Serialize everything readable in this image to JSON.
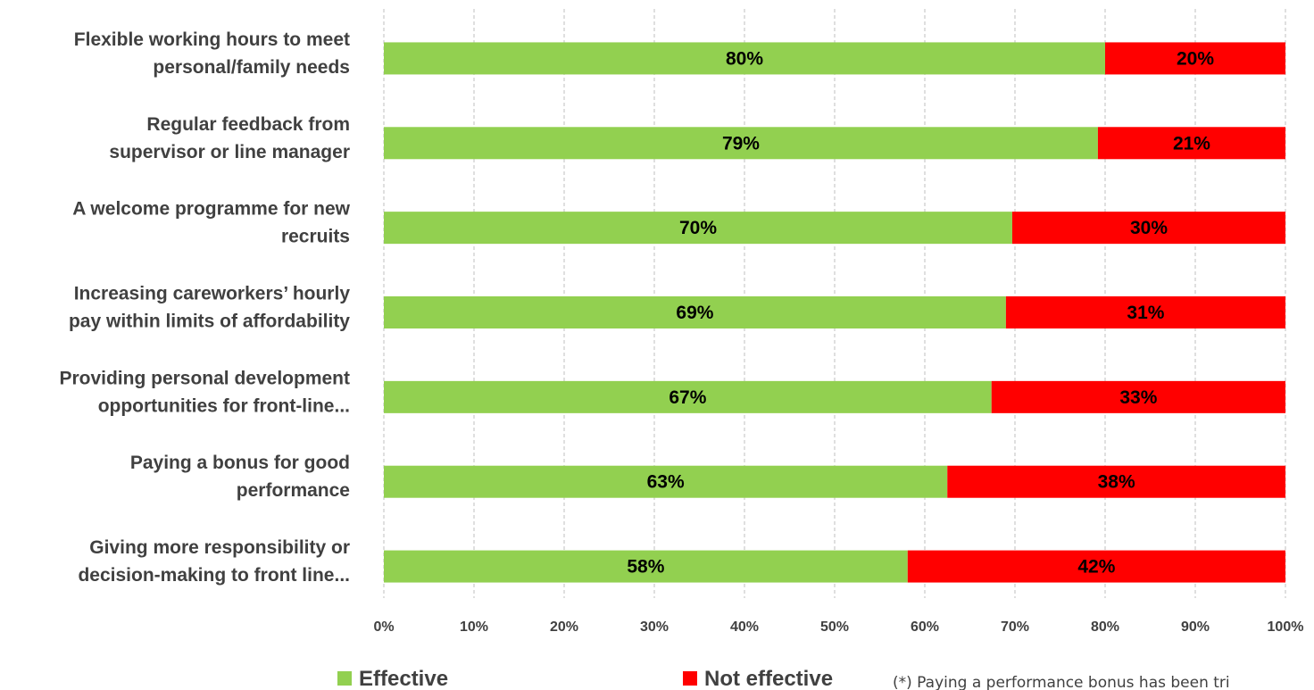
{
  "chart_data": {
    "type": "bar",
    "orientation": "horizontal",
    "stacked": true,
    "categories": [
      [
        "Flexible working hours to meet",
        "personal/family needs"
      ],
      [
        "Regular feedback from",
        "supervisor or line manager"
      ],
      [
        "A welcome programme for new",
        "recruits"
      ],
      [
        "Increasing careworkers’ hourly",
        "pay within limits of affordability"
      ],
      [
        "Providing personal development",
        "opportunities for front-line..."
      ],
      [
        "Paying a bonus for good",
        "performance"
      ],
      [
        "Giving more responsibility or",
        "decision-making to front line..."
      ]
    ],
    "series": [
      {
        "name": "Effective",
        "color": "#92d050",
        "values": [
          80,
          79.2,
          69.7,
          69,
          67.4,
          62.5,
          58.1
        ],
        "labels": [
          "80%",
          "79%",
          "70%",
          "69%",
          "67%",
          "63%",
          "58%"
        ],
        "label_color": "#000000"
      },
      {
        "name": "Not effective",
        "color": "#ff0000",
        "values": [
          20,
          20.8,
          30.3,
          31,
          32.6,
          37.5,
          41.9
        ],
        "labels": [
          "20%",
          "21%",
          "30%",
          "31%",
          "33%",
          "38%",
          "42%"
        ],
        "label_color": "#000000"
      }
    ],
    "xlim": [
      0,
      100
    ],
    "x_ticks": [
      "0%",
      "10%",
      "20%",
      "30%",
      "40%",
      "50%",
      "60%",
      "70%",
      "80%",
      "90%",
      "100%"
    ],
    "grid": true,
    "legend_position": "bottom",
    "title": "",
    "xlabel": "",
    "ylabel": ""
  },
  "footnote": "(*) Paying a performance bonus has been tri"
}
